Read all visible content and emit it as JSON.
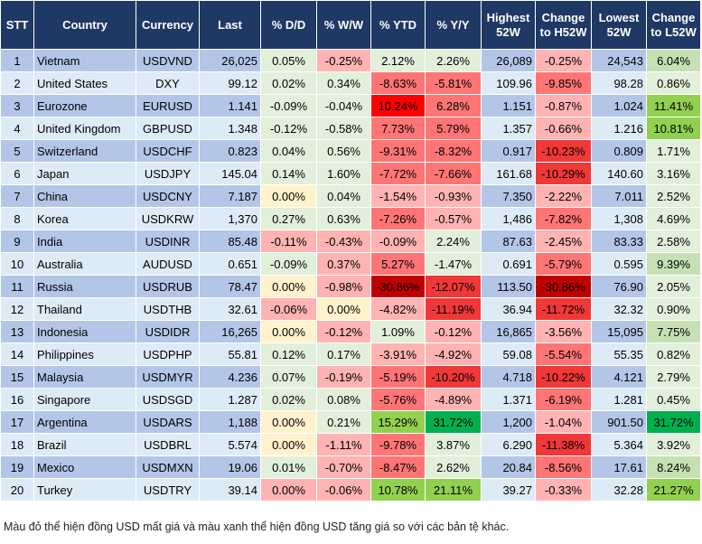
{
  "headers": [
    "STT",
    "Country",
    "Currency",
    "Last",
    "% D/D",
    "% W/W",
    "% YTD",
    "% Y/Y",
    "Highest 52W",
    "Change to H52W",
    "Lowest 52W",
    "Change to L52W"
  ],
  "colors": {
    "header": "#203864",
    "g": "#e2efda",
    "p": "#ffb3b3",
    "m": "#ff7575",
    "s": "#f03838",
    "d": "#c00000",
    "r": "#ff0000",
    "y": "#fff2cc",
    "G1": "#c6e0b4",
    "G2": "#92d050",
    "G3": "#00b050"
  },
  "rows": [
    {
      "stt": "1",
      "country": "Vietnam",
      "currency": "USDVND",
      "last": "26,025",
      "dd": "0.05%",
      "ww": "-0.25%",
      "ytd": "2.12%",
      "yy": "2.26%",
      "high": "26,089",
      "h52": "-0.25%",
      "low": "24,543",
      "l52": "6.04%",
      "fills": [
        "g",
        "p",
        "g",
        "g",
        "p",
        "G1"
      ]
    },
    {
      "stt": "2",
      "country": "United States",
      "currency": "DXY",
      "last": "99.12",
      "dd": "0.02%",
      "ww": "0.34%",
      "ytd": "-8.63%",
      "yy": "-5.81%",
      "high": "109.96",
      "h52": "-9.85%",
      "low": "98.28",
      "l52": "0.86%",
      "fills": [
        "g",
        "g",
        "m",
        "m",
        "m",
        "g"
      ]
    },
    {
      "stt": "3",
      "country": "Eurozone",
      "currency": "EURUSD",
      "last": "1.141",
      "dd": "-0.09%",
      "ww": "-0.04%",
      "ytd": "10.24%",
      "yy": "6.28%",
      "high": "1.151",
      "h52": "-0.87%",
      "low": "1.024",
      "l52": "11.41%",
      "fills": [
        "g",
        "g",
        "r",
        "m",
        "p",
        "G2"
      ]
    },
    {
      "stt": "4",
      "country": "United Kingdom",
      "currency": "GBPUSD",
      "last": "1.348",
      "dd": "-0.12%",
      "ww": "-0.58%",
      "ytd": "7.73%",
      "yy": "5.79%",
      "high": "1.357",
      "h52": "-0.66%",
      "low": "1.216",
      "l52": "10.81%",
      "fills": [
        "g",
        "g",
        "m",
        "m",
        "p",
        "G2"
      ]
    },
    {
      "stt": "5",
      "country": "Switzerland",
      "currency": "USDCHF",
      "last": "0.823",
      "dd": "0.04%",
      "ww": "0.56%",
      "ytd": "-9.31%",
      "yy": "-8.32%",
      "high": "0.917",
      "h52": "-10.23%",
      "low": "0.809",
      "l52": "1.71%",
      "fills": [
        "g",
        "g",
        "m",
        "m",
        "s",
        "g"
      ]
    },
    {
      "stt": "6",
      "country": "Japan",
      "currency": "USDJPY",
      "last": "145.04",
      "dd": "0.14%",
      "ww": "1.60%",
      "ytd": "-7.72%",
      "yy": "-7.66%",
      "high": "161.68",
      "h52": "-10.29%",
      "low": "140.60",
      "l52": "3.16%",
      "fills": [
        "g",
        "g",
        "m",
        "m",
        "s",
        "g"
      ]
    },
    {
      "stt": "7",
      "country": "China",
      "currency": "USDCNY",
      "last": "7.187",
      "dd": "0.00%",
      "ww": "0.04%",
      "ytd": "-1.54%",
      "yy": "-0.93%",
      "high": "7.350",
      "h52": "-2.22%",
      "low": "7.011",
      "l52": "2.52%",
      "fills": [
        "y",
        "g",
        "p",
        "p",
        "p",
        "g"
      ]
    },
    {
      "stt": "8",
      "country": "Korea",
      "currency": "USDKRW",
      "last": "1,370",
      "dd": "0.27%",
      "ww": "0.63%",
      "ytd": "-7.26%",
      "yy": "-0.57%",
      "high": "1,486",
      "h52": "-7.82%",
      "low": "1,308",
      "l52": "4.69%",
      "fills": [
        "g",
        "g",
        "m",
        "p",
        "m",
        "g"
      ]
    },
    {
      "stt": "9",
      "country": "India",
      "currency": "USDINR",
      "last": "85.48",
      "dd": "-0.11%",
      "ww": "-0.43%",
      "ytd": "-0.09%",
      "yy": "2.24%",
      "high": "87.63",
      "h52": "-2.45%",
      "low": "83.33",
      "l52": "2.58%",
      "fills": [
        "p",
        "p",
        "p",
        "g",
        "p",
        "g"
      ]
    },
    {
      "stt": "10",
      "country": "Australia",
      "currency": "AUDUSD",
      "last": "0.651",
      "dd": "-0.09%",
      "ww": "0.37%",
      "ytd": "5.27%",
      "yy": "-1.47%",
      "high": "0.691",
      "h52": "-5.79%",
      "low": "0.595",
      "l52": "9.39%",
      "fills": [
        "g",
        "p",
        "m",
        "g",
        "m",
        "G1"
      ]
    },
    {
      "stt": "11",
      "country": "Russia",
      "currency": "USDRUB",
      "last": "78.47",
      "dd": "0.00%",
      "ww": "-0.98%",
      "ytd": "-30.86%",
      "yy": "-12.07%",
      "high": "113.50",
      "h52": "-30.86%",
      "low": "76.90",
      "l52": "2.05%",
      "fills": [
        "y",
        "p",
        "d",
        "s",
        "d",
        "g"
      ]
    },
    {
      "stt": "12",
      "country": "Thailand",
      "currency": "USDTHB",
      "last": "32.61",
      "dd": "-0.06%",
      "ww": "0.00%",
      "ytd": "-4.82%",
      "yy": "-11.19%",
      "high": "36.94",
      "h52": "-11.72%",
      "low": "32.32",
      "l52": "0.90%",
      "fills": [
        "p",
        "y",
        "p",
        "s",
        "s",
        "g"
      ]
    },
    {
      "stt": "13",
      "country": "Indonesia",
      "currency": "USDIDR",
      "last": "16,265",
      "dd": "0.00%",
      "ww": "-0.12%",
      "ytd": "1.09%",
      "yy": "-0.12%",
      "high": "16,865",
      "h52": "-3.56%",
      "low": "15,095",
      "l52": "7.75%",
      "fills": [
        "y",
        "p",
        "g",
        "p",
        "p",
        "G1"
      ]
    },
    {
      "stt": "14",
      "country": "Philippines",
      "currency": "USDPHP",
      "last": "55.81",
      "dd": "0.12%",
      "ww": "0.17%",
      "ytd": "-3.91%",
      "yy": "-4.92%",
      "high": "59.08",
      "h52": "-5.54%",
      "low": "55.35",
      "l52": "0.82%",
      "fills": [
        "g",
        "g",
        "p",
        "p",
        "m",
        "g"
      ]
    },
    {
      "stt": "15",
      "country": "Malaysia",
      "currency": "USDMYR",
      "last": "4.236",
      "dd": "0.07%",
      "ww": "-0.19%",
      "ytd": "-5.19%",
      "yy": "-10.20%",
      "high": "4.718",
      "h52": "-10.22%",
      "low": "4.121",
      "l52": "2.79%",
      "fills": [
        "g",
        "p",
        "m",
        "s",
        "s",
        "g"
      ]
    },
    {
      "stt": "16",
      "country": "Singapore",
      "currency": "USDSGD",
      "last": "1.287",
      "dd": "0.02%",
      "ww": "0.08%",
      "ytd": "-5.76%",
      "yy": "-4.89%",
      "high": "1.371",
      "h52": "-6.19%",
      "low": "1.281",
      "l52": "0.45%",
      "fills": [
        "g",
        "g",
        "m",
        "p",
        "m",
        "g"
      ]
    },
    {
      "stt": "17",
      "country": "Argentina",
      "currency": "USDARS",
      "last": "1,188",
      "dd": "0.00%",
      "ww": "0.21%",
      "ytd": "15.29%",
      "yy": "31.72%",
      "high": "1,200",
      "h52": "-1.04%",
      "low": "901.50",
      "l52": "31.72%",
      "fills": [
        "y",
        "g",
        "G2",
        "G3",
        "p",
        "G3"
      ]
    },
    {
      "stt": "18",
      "country": "Brazil",
      "currency": "USDBRL",
      "last": "5.574",
      "dd": "0.00%",
      "ww": "-1.11%",
      "ytd": "-9.78%",
      "yy": "3.87%",
      "high": "6.290",
      "h52": "-11.38%",
      "low": "5.364",
      "l52": "3.92%",
      "fills": [
        "y",
        "p",
        "m",
        "g",
        "s",
        "g"
      ]
    },
    {
      "stt": "19",
      "country": "Mexico",
      "currency": "USDMXN",
      "last": "19.06",
      "dd": "0.01%",
      "ww": "-0.70%",
      "ytd": "-8.47%",
      "yy": "2.62%",
      "high": "20.84",
      "h52": "-8.56%",
      "low": "17.61",
      "l52": "8.24%",
      "fills": [
        "g",
        "p",
        "m",
        "g",
        "m",
        "G1"
      ]
    },
    {
      "stt": "20",
      "country": "Turkey",
      "currency": "USDTRY",
      "last": "39.14",
      "dd": "0.00%",
      "ww": "-0.06%",
      "ytd": "10.78%",
      "yy": "21.11%",
      "high": "39.27",
      "h52": "-0.33%",
      "low": "32.28",
      "l52": "21.27%",
      "fills": [
        "p",
        "p",
        "G2",
        "G2",
        "p",
        "G2"
      ]
    }
  ],
  "footnote": "Màu đỏ thể hiện đồng USD mất giá và màu xanh thể hiện đồng USD tăng giá so với các bản tệ khác."
}
